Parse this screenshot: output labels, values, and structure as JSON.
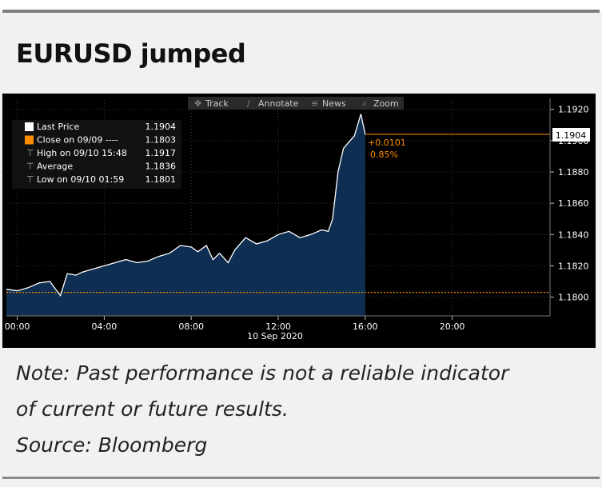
{
  "headline": "EURUSD jumped",
  "toolbar": [
    "Track",
    "Annotate",
    "News",
    "Zoom"
  ],
  "legend": [
    {
      "label": "Last Price",
      "value": "1.1904",
      "color": "#ffffff"
    },
    {
      "label": "Close on 09/09 ----",
      "value": "1.1803",
      "color": "#ff8c00"
    },
    {
      "label": "High on 09/10 15:48",
      "value": "1.1917",
      "color": "#cccccc"
    },
    {
      "label": "Average",
      "value": "1.1836",
      "color": "#cccccc"
    },
    {
      "label": "Low on 09/10 01:59",
      "value": "1.1801",
      "color": "#cccccc"
    }
  ],
  "last_price_tag": "1.1904",
  "change_abs": "+0.0101",
  "change_pct": "0.85%",
  "notes": [
    "Note: Past performance is not a reliable indicator",
    "of current or future results.",
    "Source: Bloomberg"
  ],
  "colors": {
    "price_line": "#ffffff",
    "area_fill": "#0e2f52",
    "reference": "#ff8c00",
    "background": "#000000"
  },
  "chart_data": {
    "type": "area",
    "title": "EURUSD jumped",
    "xlabel": "10 Sep 2020",
    "x_tick_labels": [
      "00:00",
      "04:00",
      "08:00",
      "12:00",
      "16:00",
      "20:00"
    ],
    "y_tick_labels": [
      "1.1920",
      "1.1900",
      "1.1880",
      "1.1860",
      "1.1840",
      "1.1820",
      "1.1800"
    ],
    "xlim_hours": [
      -0.5,
      24.5
    ],
    "ylim": [
      1.1788,
      1.1926
    ],
    "y_axis_side": "right",
    "legend_position": "top-left",
    "reference_line": {
      "label": "Close on 09/09",
      "value": 1.1803
    },
    "series": [
      {
        "name": "Last Price",
        "x_hours": [
          -0.5,
          0.0,
          0.5,
          1.0,
          1.5,
          1.98,
          2.3,
          2.7,
          3.0,
          3.5,
          4.0,
          4.5,
          5.0,
          5.5,
          6.0,
          6.5,
          7.0,
          7.5,
          8.0,
          8.3,
          8.7,
          9.0,
          9.3,
          9.7,
          10.0,
          10.5,
          11.0,
          11.5,
          12.0,
          12.5,
          13.0,
          13.5,
          14.0,
          14.3,
          14.5,
          14.75,
          15.0,
          15.3,
          15.5,
          15.8,
          16.0
        ],
        "values": [
          1.1805,
          1.1804,
          1.1806,
          1.1809,
          1.181,
          1.1801,
          1.1815,
          1.1814,
          1.1816,
          1.1818,
          1.182,
          1.1822,
          1.1824,
          1.1822,
          1.1823,
          1.1826,
          1.1828,
          1.1833,
          1.1832,
          1.1829,
          1.1833,
          1.1824,
          1.1828,
          1.1822,
          1.183,
          1.1838,
          1.1834,
          1.1836,
          1.184,
          1.1842,
          1.1838,
          1.184,
          1.1843,
          1.1842,
          1.185,
          1.188,
          1.1895,
          1.19,
          1.1903,
          1.1917,
          1.1904
        ]
      }
    ]
  }
}
